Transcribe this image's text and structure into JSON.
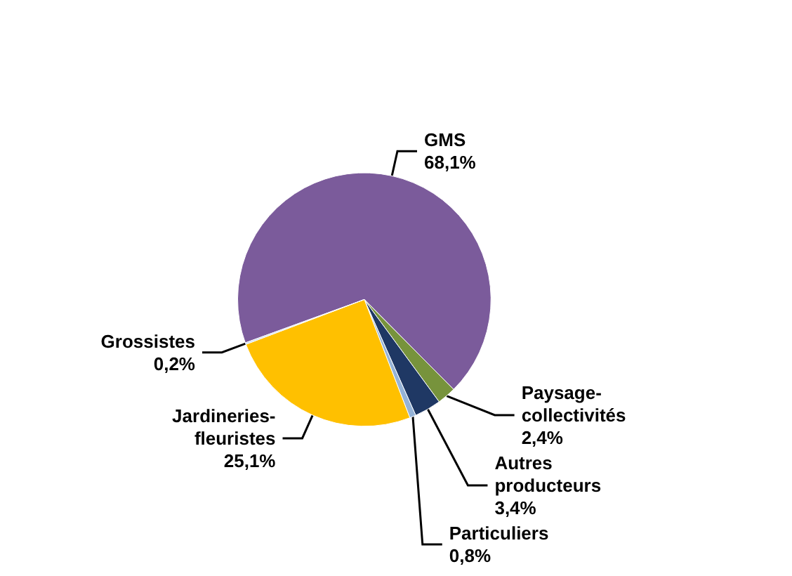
{
  "chart_data": {
    "type": "pie",
    "categories": [
      "GMS",
      "Paysage-collectivités",
      "Autres producteurs",
      "Particuliers",
      "Jardineries-fleuristes",
      "Grossistes"
    ],
    "values": [
      68.1,
      2.4,
      3.4,
      0.8,
      25.1,
      0.2
    ],
    "value_labels": [
      "68,1%",
      "2,4%",
      "3,4%",
      "0,8%",
      "25,1%",
      "0,2%"
    ],
    "colors": [
      "#7b5b9b",
      "#77933c",
      "#1f3864",
      "#95b3d7",
      "#ffc000",
      "#c6d9f1"
    ],
    "legend": false
  }
}
